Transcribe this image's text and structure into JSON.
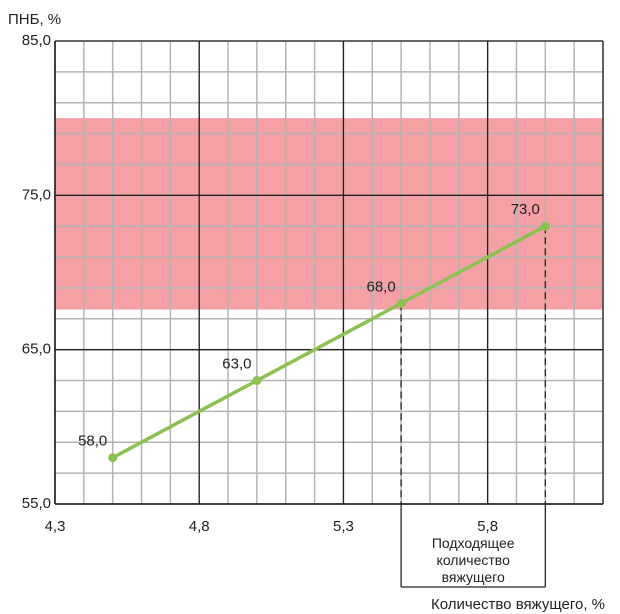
{
  "chart_data": {
    "type": "line",
    "ylabel": "ПНБ, %",
    "xlabel": "Количество вяжущего, %",
    "xlim": [
      4.3,
      6.2
    ],
    "ylim": [
      55,
      85
    ],
    "x_ticks": [
      "4,3",
      "4,8",
      "5,3",
      "5,8"
    ],
    "x_tick_values": [
      4.3,
      4.8,
      5.3,
      5.8
    ],
    "y_ticks": [
      "55,0",
      "65,0",
      "75,0",
      "85,0"
    ],
    "y_tick_values": [
      55,
      65,
      75,
      85
    ],
    "x_minor_step": 0.1,
    "y_minor_step": 2,
    "grid": true,
    "band": {
      "from": 67.6,
      "to": 80,
      "color": "#f4a0a4"
    },
    "series": [
      {
        "name": "ПНБ",
        "color": "#8cc152",
        "x": [
          4.5,
          5.0,
          5.5,
          6.0
        ],
        "y": [
          58,
          63,
          68,
          73
        ],
        "labels": [
          "58,0",
          "63,0",
          "68,0",
          "73,0"
        ]
      }
    ],
    "annotation": {
      "x_from": 5.5,
      "x_to": 6.0,
      "lines": [
        "Подходящее",
        "количество",
        "вяжущего"
      ]
    }
  }
}
